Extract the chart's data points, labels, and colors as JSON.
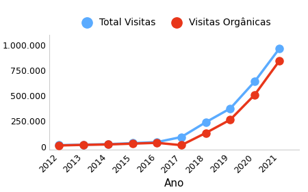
{
  "years": [
    2012,
    2013,
    2014,
    2015,
    2016,
    2017,
    2018,
    2019,
    2020,
    2021
  ],
  "total_visitas": [
    15000,
    20000,
    25000,
    35000,
    45000,
    95000,
    240000,
    375000,
    640000,
    960000
  ],
  "visitas_organicas": [
    12000,
    18000,
    22000,
    30000,
    38000,
    15000,
    135000,
    265000,
    510000,
    840000
  ],
  "color_total": "#5AABFF",
  "color_organicas": "#E8361A",
  "xlabel": "Ano",
  "legend_total": "Total Visitas",
  "legend_organicas": "Visitas Orgânicas",
  "yticks": [
    0,
    250000,
    500000,
    750000,
    1000000
  ],
  "ylim": [
    -30000,
    1100000
  ],
  "xlim": [
    2011.6,
    2021.8
  ],
  "marker_size": 8,
  "line_width": 2.5,
  "background_color": "#ffffff",
  "border_color": "#cccccc",
  "tick_fontsize": 9,
  "xlabel_fontsize": 11,
  "legend_fontsize": 10
}
